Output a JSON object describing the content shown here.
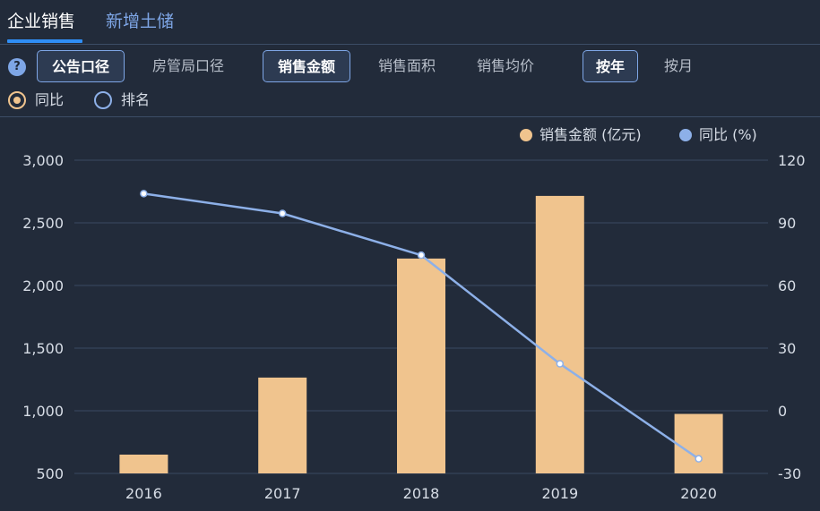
{
  "tabs": [
    {
      "label": "企业销售",
      "active": true
    },
    {
      "label": "新增土储",
      "active": false
    }
  ],
  "help_icon_glyph": "?",
  "filters": {
    "caliber": [
      {
        "label": "公告口径",
        "selected": true
      },
      {
        "label": "房管局口径",
        "selected": false
      }
    ],
    "metric": [
      {
        "label": "销售金额",
        "selected": true
      },
      {
        "label": "销售面积",
        "selected": false
      },
      {
        "label": "销售均价",
        "selected": false
      }
    ],
    "period": [
      {
        "label": "按年",
        "selected": true
      },
      {
        "label": "按月",
        "selected": false
      }
    ]
  },
  "radios": [
    {
      "label": "同比",
      "checked": true
    },
    {
      "label": "排名",
      "checked": false
    }
  ],
  "colors": {
    "bar": "#f0c48e",
    "line": "#8db0e8",
    "accent": "#2f8ef5"
  },
  "chart_data": {
    "type": "bar",
    "categories": [
      "2016",
      "2017",
      "2018",
      "2019",
      "2020"
    ],
    "series": [
      {
        "name": "销售金额 (亿元)",
        "type": "bar",
        "axis": "left",
        "values": [
          650,
          1265,
          2215,
          2715,
          975
        ]
      },
      {
        "name": "同比 (%)",
        "type": "line",
        "axis": "right",
        "values": [
          104,
          94.5,
          74.5,
          22.5,
          -23
        ]
      }
    ],
    "y_left": {
      "min": 500,
      "max": 3000,
      "ticks": [
        "500",
        "1,000",
        "1,500",
        "2,000",
        "2,500",
        "3,000"
      ]
    },
    "y_right": {
      "min": -30,
      "max": 120,
      "ticks": [
        "-30",
        "0",
        "30",
        "60",
        "90",
        "120"
      ]
    },
    "grid": true,
    "legend_position": "top-right"
  }
}
